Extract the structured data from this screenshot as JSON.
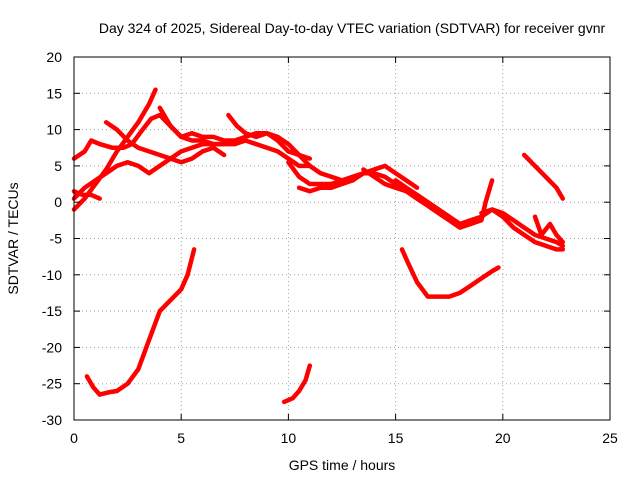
{
  "chart_data": {
    "type": "line",
    "title": "Day 324 of 2025, Sidereal Day-to-day VTEC variation (SDTVAR) for receiver gvnr",
    "xlabel": "GPS time / hours",
    "ylabel": "SDTVAR / TECUs",
    "xlim": [
      0,
      25
    ],
    "ylim": [
      -30,
      20
    ],
    "xticks": [
      0,
      5,
      10,
      15,
      20,
      25
    ],
    "yticks": [
      -30,
      -25,
      -20,
      -15,
      -10,
      -5,
      0,
      5,
      10,
      15,
      20
    ],
    "grid": true,
    "line_color": "#ff0000",
    "series": [
      {
        "name": "s1",
        "x": [
          0.0,
          0.5,
          0.8,
          1.2,
          1.8,
          2.3,
          2.7,
          3.2,
          3.6,
          4.0,
          4.5,
          5.0,
          5.5,
          6.0,
          6.5,
          7.0,
          7.5,
          8.0,
          8.5,
          9.0,
          9.5,
          10.0,
          10.5,
          11.0
        ],
        "y": [
          6.0,
          7.0,
          8.5,
          8.0,
          7.5,
          7.5,
          8.0,
          10.0,
          11.5,
          12.0,
          10.5,
          9.0,
          9.5,
          9.0,
          9.0,
          8.5,
          8.5,
          9.0,
          9.5,
          9.5,
          8.5,
          7.0,
          6.5,
          6.0
        ]
      },
      {
        "name": "s2",
        "x": [
          0.0,
          0.5,
          1.0,
          1.5,
          2.0,
          2.5,
          3.0,
          3.5,
          3.8
        ],
        "y": [
          -1.0,
          0.5,
          2.5,
          4.5,
          7.0,
          9.0,
          11.0,
          13.5,
          15.5
        ]
      },
      {
        "name": "s3",
        "x": [
          0.0,
          0.5,
          1.0,
          1.5,
          2.0,
          2.5,
          3.0,
          3.5,
          4.0,
          4.5,
          5.0,
          5.5,
          6.0,
          6.5,
          7.0
        ],
        "y": [
          0.5,
          2.0,
          3.0,
          4.0,
          5.0,
          5.5,
          5.0,
          4.0,
          5.0,
          6.0,
          7.0,
          7.5,
          8.0,
          8.0,
          8.0
        ]
      },
      {
        "name": "s4",
        "x": [
          0.0,
          0.4,
          0.8,
          1.2
        ],
        "y": [
          1.5,
          1.0,
          1.0,
          0.5
        ]
      },
      {
        "name": "s5",
        "x": [
          1.5,
          2.0,
          2.5,
          3.0,
          3.5,
          4.0,
          4.5,
          5.0,
          5.5,
          6.0,
          6.5,
          7.0
        ],
        "y": [
          11.0,
          10.0,
          8.5,
          7.5,
          7.0,
          6.5,
          6.0,
          5.5,
          6.0,
          7.0,
          7.5,
          6.5
        ]
      },
      {
        "name": "s6",
        "x": [
          4.0,
          4.5,
          5.0,
          5.5,
          6.0,
          6.5,
          7.0,
          7.5,
          8.0,
          8.5,
          9.0,
          9.5,
          10.0,
          10.5,
          11.0
        ],
        "y": [
          13.0,
          10.5,
          9.0,
          8.5,
          8.5,
          8.0,
          8.0,
          8.0,
          8.5,
          8.0,
          7.5,
          7.0,
          6.0,
          5.0,
          5.0
        ]
      },
      {
        "name": "s7",
        "x": [
          7.2,
          7.6,
          8.0,
          8.5,
          9.0,
          9.5,
          10.0,
          10.5,
          11.0,
          11.5,
          12.0,
          12.5,
          13.0
        ],
        "y": [
          12.0,
          10.5,
          9.5,
          9.0,
          9.5,
          9.0,
          8.0,
          6.5,
          5.0,
          4.0,
          3.5,
          3.0,
          3.0
        ]
      },
      {
        "name": "s8",
        "x": [
          10.0,
          10.5,
          11.0,
          11.5,
          12.0,
          12.5,
          13.0,
          13.5,
          14.0,
          14.5,
          15.0,
          15.5,
          16.0
        ],
        "y": [
          5.5,
          3.5,
          2.5,
          2.5,
          2.5,
          3.0,
          3.5,
          4.0,
          4.5,
          5.0,
          4.0,
          3.0,
          2.0
        ]
      },
      {
        "name": "s9",
        "x": [
          10.5,
          11.0,
          11.5,
          12.0,
          12.5,
          13.0,
          13.5,
          14.0,
          14.5,
          15.0,
          15.5,
          16.0,
          16.5,
          17.0,
          17.5,
          18.0,
          18.5,
          19.0
        ],
        "y": [
          2.0,
          1.5,
          2.0,
          2.0,
          2.5,
          3.0,
          4.0,
          4.0,
          3.5,
          2.5,
          1.5,
          1.0,
          0.0,
          -1.0,
          -2.0,
          -3.0,
          -2.5,
          -2.0
        ]
      },
      {
        "name": "s10",
        "x": [
          13.5,
          14.0,
          14.5,
          15.0,
          15.5,
          16.0,
          16.5,
          17.0,
          17.5,
          18.0,
          18.5,
          19.0,
          19.5,
          20.0,
          20.5,
          21.0,
          21.5,
          22.0,
          22.5,
          22.8
        ],
        "y": [
          4.5,
          3.5,
          2.5,
          2.0,
          1.5,
          0.5,
          -0.5,
          -1.5,
          -2.5,
          -3.5,
          -3.0,
          -2.0,
          -1.0,
          -2.0,
          -3.5,
          -4.5,
          -5.5,
          -6.0,
          -6.5,
          -6.5
        ]
      },
      {
        "name": "s11",
        "x": [
          15.0,
          15.5,
          16.0,
          16.5,
          17.0,
          17.5,
          18.0,
          18.5,
          19.0,
          19.2,
          19.5
        ],
        "y": [
          3.0,
          2.0,
          1.0,
          0.0,
          -1.0,
          -2.0,
          -3.0,
          -3.0,
          -2.5,
          0.0,
          3.0
        ]
      },
      {
        "name": "s12",
        "x": [
          19.0,
          19.5,
          20.0,
          20.5,
          21.0,
          21.5,
          22.0,
          22.5,
          22.8
        ],
        "y": [
          -1.5,
          -1.0,
          -1.5,
          -2.5,
          -3.5,
          -4.5,
          -5.0,
          -5.5,
          -6.0
        ]
      },
      {
        "name": "s13",
        "x": [
          21.5,
          21.8,
          22.2,
          22.5,
          22.8
        ],
        "y": [
          -2.0,
          -4.5,
          -3.0,
          -4.5,
          -5.5
        ]
      },
      {
        "name": "s14",
        "x": [
          21.0,
          21.5,
          22.0,
          22.5,
          22.8
        ],
        "y": [
          6.5,
          5.0,
          3.5,
          2.0,
          0.5
        ]
      },
      {
        "name": "s15",
        "x": [
          0.6,
          0.9,
          1.2,
          1.6,
          2.0,
          2.5,
          3.0,
          3.5,
          4.0,
          4.5,
          5.0,
          5.3,
          5.6
        ],
        "y": [
          -24.0,
          -25.5,
          -26.5,
          -26.2,
          -26.0,
          -25.0,
          -23.0,
          -19.0,
          -15.0,
          -13.5,
          -12.0,
          -10.0,
          -6.5
        ]
      },
      {
        "name": "s16",
        "x": [
          9.8,
          10.2,
          10.5,
          10.8,
          11.0
        ],
        "y": [
          -27.5,
          -27.0,
          -26.0,
          -24.5,
          -22.5
        ]
      },
      {
        "name": "s17",
        "x": [
          15.3,
          15.6,
          16.0,
          16.5,
          17.0,
          17.5,
          18.0,
          18.5,
          19.0,
          19.5,
          19.8
        ],
        "y": [
          -6.5,
          -8.5,
          -11.0,
          -13.0,
          -13.0,
          -13.0,
          -12.5,
          -11.5,
          -10.5,
          -9.5,
          -9.0
        ]
      }
    ]
  }
}
